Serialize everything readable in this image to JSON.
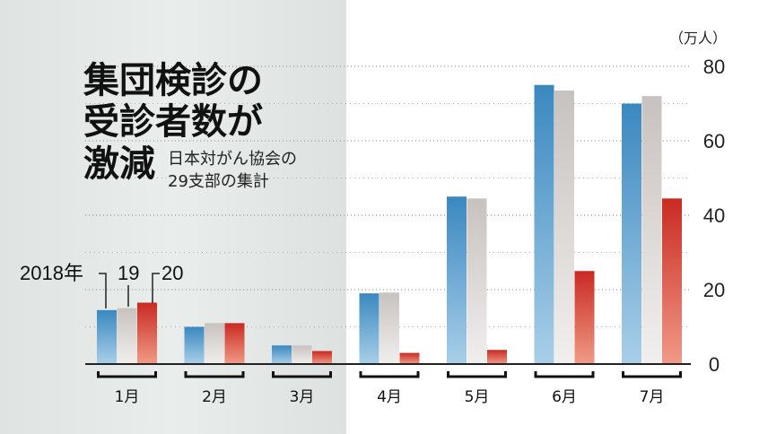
{
  "title_lines": [
    "集団検診の",
    "受診者数が",
    "激減"
  ],
  "subtitle_lines": [
    "日本対がん協会の",
    "29支部の集計"
  ],
  "colors": {
    "series_2018": "#3f8fc4",
    "series_2019": "#cfcac7",
    "series_2020": "#cc2b23",
    "background_left": "#e2e6e4",
    "gridline": "#999999"
  },
  "chart_data": {
    "type": "bar",
    "title": "",
    "categories": [
      "1月",
      "2月",
      "3月",
      "4月",
      "5月",
      "6月",
      "7月"
    ],
    "series": [
      {
        "name": "2018年",
        "values": [
          14.5,
          10,
          5,
          19,
          45,
          75,
          70
        ]
      },
      {
        "name": "19",
        "values": [
          15,
          11,
          5,
          19.2,
          44.5,
          73.5,
          72
        ]
      },
      {
        "name": "20",
        "values": [
          16.5,
          11,
          3.5,
          3,
          3.8,
          25,
          44.5
        ]
      }
    ],
    "ylabel": "（万人）",
    "ylim": [
      0,
      80
    ],
    "yticks": [
      0,
      20,
      40,
      60,
      80
    ],
    "grid": true,
    "legend": "top-left, labels pointing at January bars"
  }
}
